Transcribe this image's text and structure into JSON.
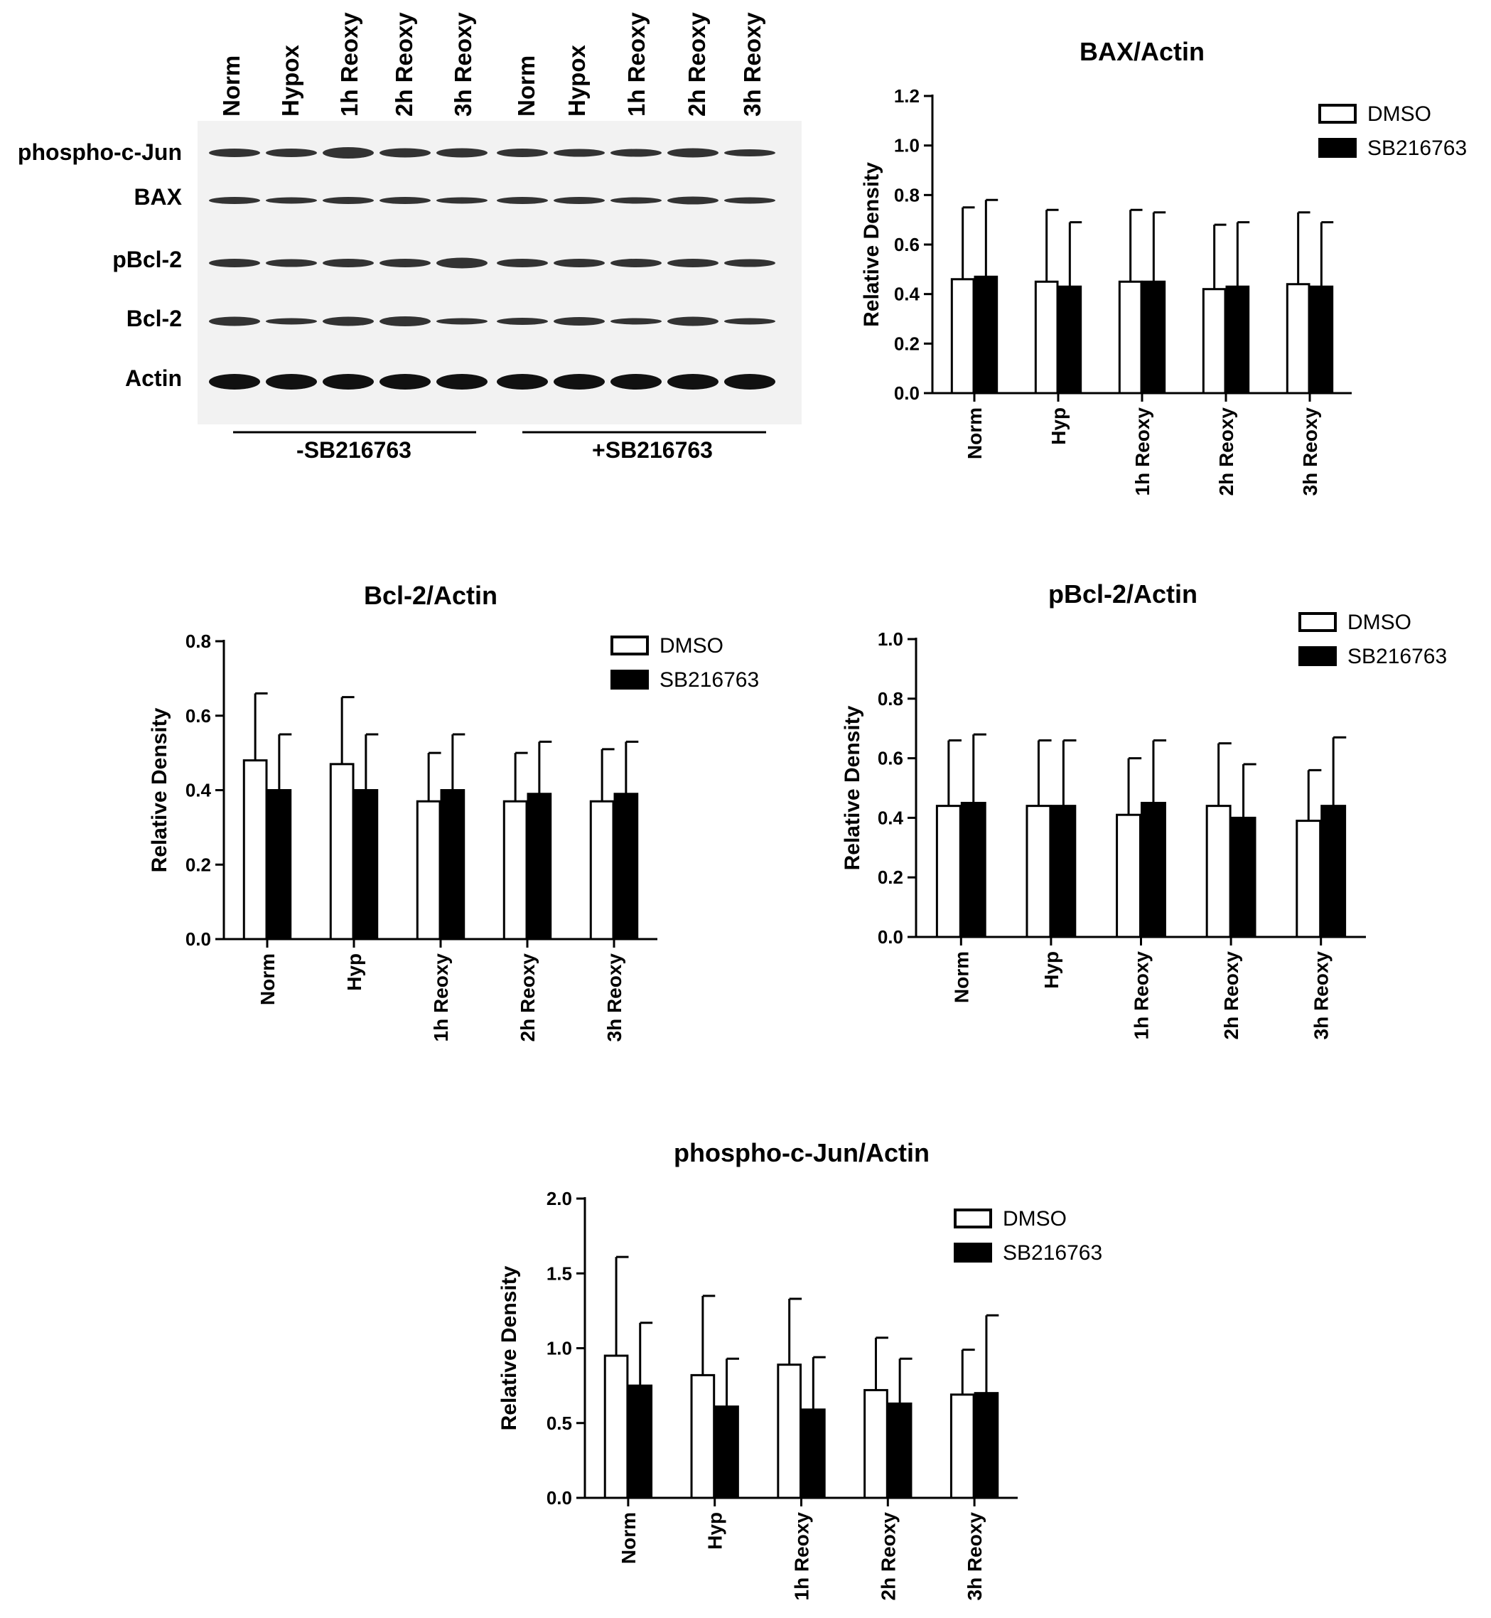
{
  "blot": {
    "lane_labels": [
      "Norm",
      "Hypox",
      "1h Reoxy",
      "2h Reoxy",
      "3h Reoxy",
      "Norm",
      "Hypox",
      "1h Reoxy",
      "2h Reoxy",
      "3h Reoxy"
    ],
    "row_labels": [
      "phospho-c-Jun",
      "BAX",
      "pBcl-2",
      "Bcl-2",
      "Actin"
    ],
    "group_labels": [
      "-SB216763",
      "+SB216763"
    ]
  },
  "chart_data": [
    {
      "type": "bar",
      "title": "BAX/Actin",
      "ylabel": "Relative Density",
      "xlabel": "",
      "categories": [
        "Norm",
        "Hyp",
        "1h Reoxy",
        "2h Reoxy",
        "3h Reoxy"
      ],
      "ylim": [
        0,
        1.2
      ],
      "yticks": [
        "0.0",
        "0.2",
        "0.4",
        "0.6",
        "0.8",
        "1.0",
        "1.2"
      ],
      "legend_position": "top-right",
      "series": [
        {
          "name": "DMSO",
          "color": "#ffffff",
          "values": [
            0.46,
            0.45,
            0.45,
            0.42,
            0.44
          ],
          "errors": [
            0.29,
            0.29,
            0.29,
            0.26,
            0.29
          ]
        },
        {
          "name": "SB216763",
          "color": "#000000",
          "values": [
            0.47,
            0.43,
            0.45,
            0.43,
            0.43
          ],
          "errors": [
            0.31,
            0.26,
            0.28,
            0.26,
            0.26
          ]
        }
      ]
    },
    {
      "type": "bar",
      "title": "Bcl-2/Actin",
      "ylabel": "Relative Density",
      "xlabel": "",
      "categories": [
        "Norm",
        "Hyp",
        "1h Reoxy",
        "2h Reoxy",
        "3h Reoxy"
      ],
      "ylim": [
        0,
        0.8
      ],
      "yticks": [
        "0.0",
        "0.2",
        "0.4",
        "0.6",
        "0.8"
      ],
      "legend_position": "top-right",
      "series": [
        {
          "name": "DMSO",
          "color": "#ffffff",
          "values": [
            0.48,
            0.47,
            0.37,
            0.37,
            0.37
          ],
          "errors": [
            0.18,
            0.18,
            0.13,
            0.13,
            0.14
          ]
        },
        {
          "name": "SB216763",
          "color": "#000000",
          "values": [
            0.4,
            0.4,
            0.4,
            0.39,
            0.39
          ],
          "errors": [
            0.15,
            0.15,
            0.15,
            0.14,
            0.14
          ]
        }
      ]
    },
    {
      "type": "bar",
      "title": "pBcl-2/Actin",
      "ylabel": "Relative Density",
      "xlabel": "",
      "categories": [
        "Norm",
        "Hyp",
        "1h Reoxy",
        "2h Reoxy",
        "3h Reoxy"
      ],
      "ylim": [
        0,
        1.0
      ],
      "yticks": [
        "0.0",
        "0.2",
        "0.4",
        "0.6",
        "0.8",
        "1.0"
      ],
      "legend_position": "top-right",
      "series": [
        {
          "name": "DMSO",
          "color": "#ffffff",
          "values": [
            0.44,
            0.44,
            0.41,
            0.44,
            0.39
          ],
          "errors": [
            0.22,
            0.22,
            0.19,
            0.21,
            0.17
          ]
        },
        {
          "name": "SB216763",
          "color": "#000000",
          "values": [
            0.45,
            0.44,
            0.45,
            0.4,
            0.44
          ],
          "errors": [
            0.23,
            0.22,
            0.21,
            0.18,
            0.23
          ]
        }
      ]
    },
    {
      "type": "bar",
      "title": "phospho-c-Jun/Actin",
      "ylabel": "Relative Density",
      "xlabel": "",
      "categories": [
        "Norm",
        "Hyp",
        "1h Reoxy",
        "2h Reoxy",
        "3h Reoxy"
      ],
      "ylim": [
        0,
        2.0
      ],
      "yticks": [
        "0.0",
        "0.5",
        "1.0",
        "1.5",
        "2.0"
      ],
      "legend_position": "top-right",
      "series": [
        {
          "name": "DMSO",
          "color": "#ffffff",
          "values": [
            0.95,
            0.82,
            0.89,
            0.72,
            0.69
          ],
          "errors": [
            0.66,
            0.53,
            0.44,
            0.35,
            0.3
          ]
        },
        {
          "name": "SB216763",
          "color": "#000000",
          "values": [
            0.75,
            0.61,
            0.59,
            0.63,
            0.7
          ],
          "errors": [
            0.42,
            0.32,
            0.35,
            0.3,
            0.52
          ]
        }
      ]
    }
  ]
}
